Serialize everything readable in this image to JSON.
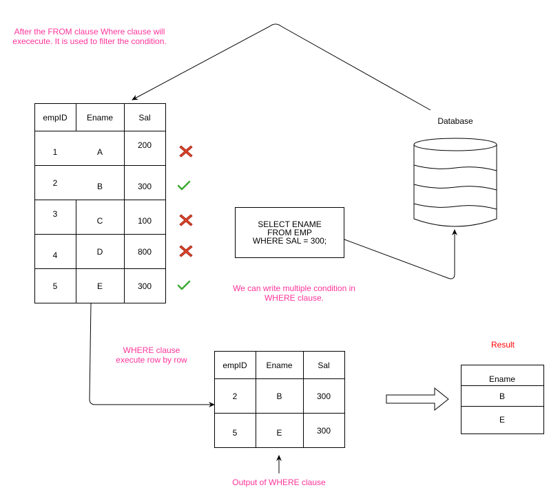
{
  "notes": {
    "from_where": "After the FROM clause Where clause will exececute. It is used to filter the condition.",
    "multiple_condition": "We can write multiple condition in WHERE clause.",
    "row_by_row": "WHERE clause execute row by row",
    "output": "Output of WHERE clause",
    "result": "Result",
    "database": "Database"
  },
  "query": {
    "line1": "SELECT ENAME",
    "line2": "FROM EMP",
    "line3": "WHERE SAL = 300;"
  },
  "emp_table": {
    "headers": [
      "empID",
      "Ename",
      "Sal"
    ],
    "rows": [
      {
        "empID": "1",
        "Ename": "A",
        "Sal": "200",
        "status": "cross-icon"
      },
      {
        "empID": "2",
        "Ename": "B",
        "Sal": "300",
        "status": "check-icon"
      },
      {
        "empID": "3",
        "Ename": "C",
        "Sal": "100",
        "status": "cross-icon"
      },
      {
        "empID": "4",
        "Ename": "D",
        "Sal": "800",
        "status": "cross-icon"
      },
      {
        "empID": "5",
        "Ename": "E",
        "Sal": "300",
        "status": "check-icon"
      }
    ]
  },
  "filtered_table": {
    "headers": [
      "empID",
      "Ename",
      "Sal"
    ],
    "rows": [
      {
        "empID": "2",
        "Ename": "B",
        "Sal": "300"
      },
      {
        "empID": "5",
        "Ename": "E",
        "Sal": "300"
      }
    ]
  },
  "result_table": {
    "header": "Ename",
    "rows": [
      "B",
      "E"
    ]
  },
  "colors": {
    "note_pink": "#ff3399",
    "result_red": "#ff0000",
    "cross_red": "#e0442a",
    "check_green": "#3aa832"
  }
}
